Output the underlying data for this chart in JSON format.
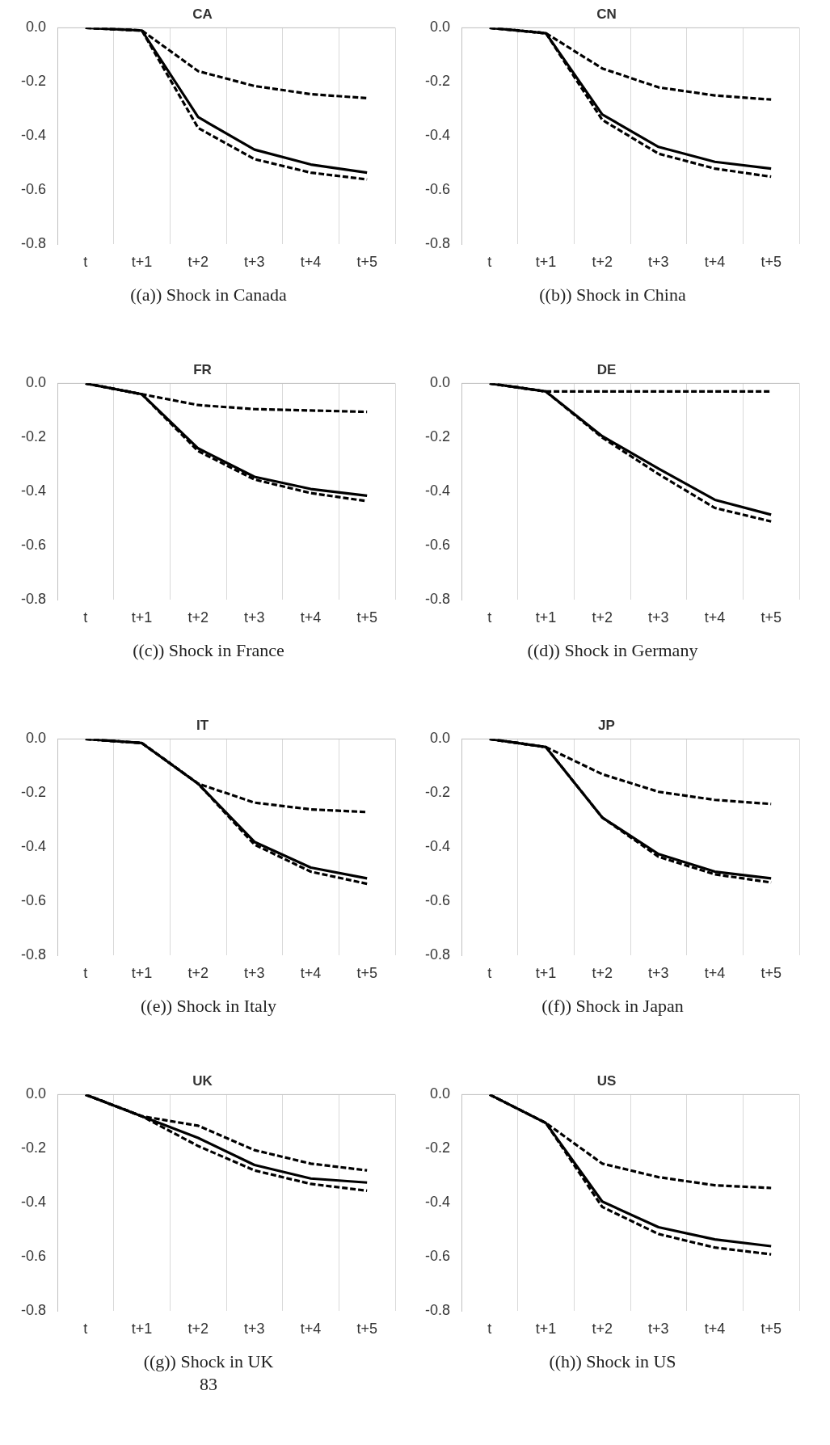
{
  "chart_data": [
    {
      "type": "line",
      "title": "CA",
      "categories": [
        "t",
        "t+1",
        "t+2",
        "t+3",
        "t+4",
        "t+5"
      ],
      "ylim": [
        -0.8,
        0
      ],
      "yticks": [
        {
          "value": 0,
          "label": "0.0"
        },
        {
          "value": -0.2,
          "label": "-0.2"
        },
        {
          "value": -0.4,
          "label": "-0.4"
        },
        {
          "value": -0.6,
          "label": "-0.6"
        },
        {
          "value": -0.8,
          "label": "-0.8"
        }
      ],
      "grid": "x",
      "annotations": [
        "((a)) Shock in Canada"
      ],
      "series": [
        {
          "color": "#000000",
          "line_style": "solid",
          "values": [
            0,
            -0.01,
            -0.33,
            -0.45,
            -0.505,
            -0.535
          ]
        },
        {
          "color": "#000000",
          "line_style": "dashed",
          "values": [
            0,
            -0.01,
            -0.16,
            -0.215,
            -0.245,
            -0.26
          ]
        },
        {
          "color": "#000000",
          "line_style": "dashed",
          "values": [
            0,
            -0.01,
            -0.37,
            -0.485,
            -0.535,
            -0.56
          ]
        }
      ]
    },
    {
      "type": "line",
      "title": "CN",
      "categories": [
        "t",
        "t+1",
        "t+2",
        "t+3",
        "t+4",
        "t+5"
      ],
      "ylim": [
        -0.8,
        0
      ],
      "yticks": [
        {
          "value": 0,
          "label": "0.0"
        },
        {
          "value": -0.2,
          "label": "-0.2"
        },
        {
          "value": -0.4,
          "label": "-0.4"
        },
        {
          "value": -0.6,
          "label": "-0.6"
        },
        {
          "value": -0.8,
          "label": "-0.8"
        }
      ],
      "grid": "x",
      "annotations": [
        "((b)) Shock in China"
      ],
      "series": [
        {
          "color": "#000000",
          "line_style": "solid",
          "values": [
            0,
            -0.02,
            -0.32,
            -0.44,
            -0.495,
            -0.52
          ]
        },
        {
          "color": "#000000",
          "line_style": "dashed",
          "values": [
            0,
            -0.02,
            -0.15,
            -0.22,
            -0.25,
            -0.265
          ]
        },
        {
          "color": "#000000",
          "line_style": "dashed",
          "values": [
            0,
            -0.02,
            -0.34,
            -0.465,
            -0.52,
            -0.55
          ]
        }
      ]
    },
    {
      "type": "line",
      "title": "FR",
      "categories": [
        "t",
        "t+1",
        "t+2",
        "t+3",
        "t+4",
        "t+5"
      ],
      "ylim": [
        -0.8,
        0
      ],
      "yticks": [
        {
          "value": 0,
          "label": "0.0"
        },
        {
          "value": -0.2,
          "label": "-0.2"
        },
        {
          "value": -0.4,
          "label": "-0.4"
        },
        {
          "value": -0.6,
          "label": "-0.6"
        },
        {
          "value": -0.8,
          "label": "-0.8"
        }
      ],
      "grid": "x",
      "annotations": [
        "((c)) Shock in France"
      ],
      "series": [
        {
          "color": "#000000",
          "line_style": "solid",
          "values": [
            0,
            -0.04,
            -0.24,
            -0.345,
            -0.39,
            -0.415
          ]
        },
        {
          "color": "#000000",
          "line_style": "dashed",
          "values": [
            0,
            -0.04,
            -0.08,
            -0.095,
            -0.1,
            -0.105
          ]
        },
        {
          "color": "#000000",
          "line_style": "dashed",
          "values": [
            0,
            -0.04,
            -0.25,
            -0.355,
            -0.405,
            -0.435
          ]
        }
      ]
    },
    {
      "type": "line",
      "title": "DE",
      "categories": [
        "t",
        "t+1",
        "t+2",
        "t+3",
        "t+4",
        "t+5"
      ],
      "ylim": [
        -0.8,
        0
      ],
      "yticks": [
        {
          "value": 0,
          "label": "0.0"
        },
        {
          "value": -0.2,
          "label": "-0.2"
        },
        {
          "value": -0.4,
          "label": "-0.4"
        },
        {
          "value": -0.6,
          "label": "-0.6"
        },
        {
          "value": -0.8,
          "label": "-0.8"
        }
      ],
      "grid": "x",
      "annotations": [
        "((d)) Shock in Germany"
      ],
      "series": [
        {
          "color": "#000000",
          "line_style": "solid",
          "values": [
            0,
            -0.03,
            -0.195,
            -0.315,
            -0.43,
            -0.485
          ]
        },
        {
          "color": "#000000",
          "line_style": "dashed",
          "values": [
            0,
            -0.03,
            -0.03,
            -0.03,
            -0.03,
            -0.03
          ]
        },
        {
          "color": "#000000",
          "line_style": "dashed",
          "values": [
            0,
            -0.03,
            -0.2,
            -0.335,
            -0.46,
            -0.51
          ]
        }
      ]
    },
    {
      "type": "line",
      "title": "IT",
      "categories": [
        "t",
        "t+1",
        "t+2",
        "t+3",
        "t+4",
        "t+5"
      ],
      "ylim": [
        -0.8,
        0
      ],
      "yticks": [
        {
          "value": 0,
          "label": "0.0"
        },
        {
          "value": -0.2,
          "label": "-0.2"
        },
        {
          "value": -0.4,
          "label": "-0.4"
        },
        {
          "value": -0.6,
          "label": "-0.6"
        },
        {
          "value": -0.8,
          "label": "-0.8"
        }
      ],
      "grid": "x",
      "annotations": [
        "((e)) Shock in Italy"
      ],
      "series": [
        {
          "color": "#000000",
          "line_style": "solid",
          "values": [
            0,
            -0.015,
            -0.165,
            -0.38,
            -0.475,
            -0.515
          ]
        },
        {
          "color": "#000000",
          "line_style": "dashed",
          "values": [
            0,
            -0.015,
            -0.165,
            -0.235,
            -0.26,
            -0.27
          ]
        },
        {
          "color": "#000000",
          "line_style": "dashed",
          "values": [
            0,
            -0.015,
            -0.165,
            -0.39,
            -0.49,
            -0.535
          ]
        }
      ]
    },
    {
      "type": "line",
      "title": "JP",
      "categories": [
        "t",
        "t+1",
        "t+2",
        "t+3",
        "t+4",
        "t+5"
      ],
      "ylim": [
        -0.8,
        0
      ],
      "yticks": [
        {
          "value": 0,
          "label": "0.0"
        },
        {
          "value": -0.2,
          "label": "-0.2"
        },
        {
          "value": -0.4,
          "label": "-0.4"
        },
        {
          "value": -0.6,
          "label": "-0.6"
        },
        {
          "value": -0.8,
          "label": "-0.8"
        }
      ],
      "grid": "x",
      "annotations": [
        "((f)) Shock in Japan"
      ],
      "series": [
        {
          "color": "#000000",
          "line_style": "solid",
          "values": [
            0,
            -0.03,
            -0.29,
            -0.425,
            -0.49,
            -0.515
          ]
        },
        {
          "color": "#000000",
          "line_style": "dashed",
          "values": [
            0,
            -0.03,
            -0.13,
            -0.195,
            -0.225,
            -0.24
          ]
        },
        {
          "color": "#000000",
          "line_style": "dashed",
          "values": [
            0,
            -0.03,
            -0.29,
            -0.435,
            -0.5,
            -0.53
          ]
        }
      ]
    },
    {
      "type": "line",
      "title": "UK",
      "categories": [
        "t",
        "t+1",
        "t+2",
        "t+3",
        "t+4",
        "t+5"
      ],
      "ylim": [
        -0.8,
        0
      ],
      "yticks": [
        {
          "value": 0,
          "label": "0.0"
        },
        {
          "value": -0.2,
          "label": "-0.2"
        },
        {
          "value": -0.4,
          "label": "-0.4"
        },
        {
          "value": -0.6,
          "label": "-0.6"
        },
        {
          "value": -0.8,
          "label": "-0.8"
        }
      ],
      "grid": "x",
      "annotations": [
        "((g)) Shock in UK",
        "83"
      ],
      "series": [
        {
          "color": "#000000",
          "line_style": "solid",
          "values": [
            0,
            -0.08,
            -0.16,
            -0.26,
            -0.31,
            -0.325
          ]
        },
        {
          "color": "#000000",
          "line_style": "dashed",
          "values": [
            0,
            -0.08,
            -0.115,
            -0.205,
            -0.255,
            -0.28
          ]
        },
        {
          "color": "#000000",
          "line_style": "dashed",
          "values": [
            0,
            -0.08,
            -0.19,
            -0.28,
            -0.33,
            -0.355
          ]
        }
      ]
    },
    {
      "type": "line",
      "title": "US",
      "categories": [
        "t",
        "t+1",
        "t+2",
        "t+3",
        "t+4",
        "t+5"
      ],
      "ylim": [
        -0.8,
        0
      ],
      "yticks": [
        {
          "value": 0,
          "label": "0.0"
        },
        {
          "value": -0.2,
          "label": "-0.2"
        },
        {
          "value": -0.4,
          "label": "-0.4"
        },
        {
          "value": -0.6,
          "label": "-0.6"
        },
        {
          "value": -0.8,
          "label": "-0.8"
        }
      ],
      "grid": "x",
      "annotations": [
        "((h)) Shock in US"
      ],
      "series": [
        {
          "color": "#000000",
          "line_style": "solid",
          "values": [
            0,
            -0.105,
            -0.395,
            -0.49,
            -0.535,
            -0.56
          ]
        },
        {
          "color": "#000000",
          "line_style": "dashed",
          "values": [
            0,
            -0.105,
            -0.255,
            -0.305,
            -0.335,
            -0.345
          ]
        },
        {
          "color": "#000000",
          "line_style": "dashed",
          "values": [
            0,
            -0.105,
            -0.415,
            -0.515,
            -0.565,
            -0.59
          ]
        }
      ]
    }
  ]
}
